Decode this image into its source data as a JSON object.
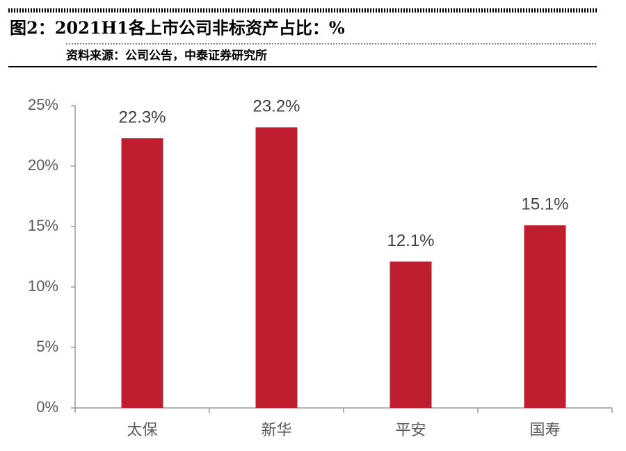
{
  "chart_data": {
    "type": "bar",
    "title": "图2：2021H1各上市公司非标资产占比：%",
    "source": "资料来源：公司公告，中泰证券研究所",
    "categories": [
      "太保",
      "新华",
      "平安",
      "国寿"
    ],
    "values": [
      22.3,
      23.2,
      12.1,
      15.1
    ],
    "value_labels": [
      "22.3%",
      "23.2%",
      "12.1%",
      "15.1%"
    ],
    "color": "#be1e2d",
    "ylim": [
      0,
      25
    ],
    "yticks": [
      {
        "value": 0,
        "label": "0%"
      },
      {
        "value": 5,
        "label": "5%"
      },
      {
        "value": 10,
        "label": "10%"
      },
      {
        "value": 15,
        "label": "15%"
      },
      {
        "value": 20,
        "label": "20%"
      },
      {
        "value": 25,
        "label": "25%"
      }
    ],
    "grid": false
  }
}
